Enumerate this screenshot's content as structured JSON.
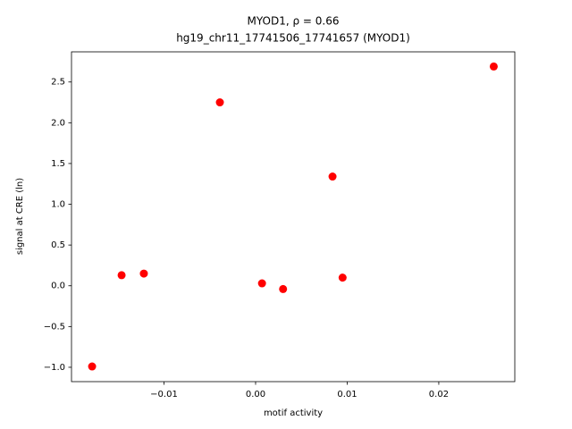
{
  "chart_data": {
    "type": "scatter",
    "title": [
      "MYOD1, ρ = 0.66",
      "hg19_chr11_17741506_17741657 (MYOD1)"
    ],
    "xlabel": "motif activity",
    "ylabel": "signal at CRE (ln)",
    "x": [
      -0.01785,
      -0.01463,
      -0.0122,
      -0.0039,
      0.0007,
      0.003,
      0.0084,
      0.0095,
      0.026
    ],
    "y": [
      -0.99,
      0.13,
      0.15,
      2.25,
      0.03,
      -0.04,
      1.34,
      0.1,
      2.69
    ],
    "color": "#ff0000",
    "xlim": [
      -0.0201,
      0.0283
    ],
    "ylim": [
      -1.176,
      2.87
    ],
    "xticks": [
      {
        "value": -0.01,
        "label": "−0.01"
      },
      {
        "value": 0,
        "label": "0.00"
      },
      0.01,
      0.02
    ],
    "yticks": [
      {
        "value": -1,
        "label": "−1.0"
      },
      {
        "value": -0.5,
        "label": "−0.5"
      },
      {
        "value": 0,
        "label": "0.0"
      },
      0.5,
      {
        "value": 1,
        "label": "1.0"
      },
      1.5,
      {
        "value": 2,
        "label": "2.0"
      },
      2.5
    ],
    "grid": false
  }
}
